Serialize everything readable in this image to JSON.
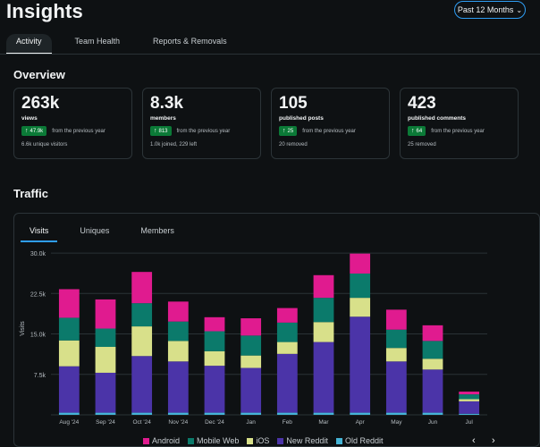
{
  "header": {
    "title": "Insights",
    "range_label": "Past 12 Months"
  },
  "tabs": [
    {
      "label": "Activity",
      "active": true
    },
    {
      "label": "Team Health",
      "active": false
    },
    {
      "label": "Reports & Removals",
      "active": false
    }
  ],
  "overview": {
    "heading": "Overview",
    "cards": [
      {
        "value": "263k",
        "label": "views",
        "change": "47.9k",
        "change_text": "from the previous year",
        "sub": "6.6k unique visitors"
      },
      {
        "value": "8.3k",
        "label": "members",
        "change": "813",
        "change_text": "from the previous year",
        "sub": "1.0k joined, 229 left"
      },
      {
        "value": "105",
        "label": "published posts",
        "change": "25",
        "change_text": "from the previous year",
        "sub": "20 removed"
      },
      {
        "value": "423",
        "label": "published comments",
        "change": "64",
        "change_text": "from the previous year",
        "sub": "25 removed"
      }
    ]
  },
  "traffic": {
    "heading": "Traffic",
    "tabs": [
      {
        "label": "Visits",
        "active": true
      },
      {
        "label": "Uniques",
        "active": false
      },
      {
        "label": "Members",
        "active": false
      }
    ],
    "pager_prev": "‹",
    "pager_next": "›"
  },
  "colors": {
    "android": "#e01b8f",
    "mobile_web": "#0b7a6b",
    "ios": "#d8e08a",
    "new_reddit": "#4b34a8",
    "old_reddit": "#45b4d6",
    "accent": "#2f9ef5"
  },
  "chart_data": {
    "type": "bar",
    "stacked": true,
    "ylabel": "Visits",
    "ylim": [
      0,
      32000
    ],
    "yticks": [
      7500,
      15000,
      22500,
      30000
    ],
    "ytick_labels": [
      "7.5k",
      "15.0k",
      "22.5k",
      "30.0k"
    ],
    "categories": [
      "Aug '24",
      "Sep '24",
      "Oct '24",
      "Nov '24",
      "Dec '24",
      "Jan",
      "Feb",
      "Mar",
      "Apr",
      "May",
      "Jun",
      "Jul"
    ],
    "series": [
      {
        "name": "Old Reddit",
        "color_key": "old_reddit",
        "values": [
          400,
          400,
          400,
          400,
          400,
          400,
          400,
          400,
          400,
          400,
          400,
          200
        ]
      },
      {
        "name": "New Reddit",
        "color_key": "new_reddit",
        "values": [
          8600,
          7400,
          10500,
          9500,
          8700,
          8300,
          10900,
          13100,
          17800,
          9500,
          8000,
          2300
        ]
      },
      {
        "name": "iOS",
        "color_key": "ios",
        "values": [
          4800,
          4800,
          5500,
          3800,
          2700,
          2300,
          2200,
          3700,
          3500,
          2500,
          2000,
          400
        ]
      },
      {
        "name": "Mobile Web",
        "color_key": "mobile_web",
        "values": [
          4200,
          3400,
          4300,
          3600,
          3700,
          3700,
          3600,
          4500,
          4500,
          3400,
          3300,
          900
        ]
      },
      {
        "name": "Android",
        "color_key": "android",
        "values": [
          5300,
          5400,
          5800,
          3700,
          2600,
          3200,
          2700,
          4200,
          3700,
          3700,
          2900,
          500
        ]
      }
    ],
    "legend": [
      "Android",
      "Mobile Web",
      "iOS",
      "New Reddit",
      "Old Reddit"
    ],
    "legend_position": "bottom"
  }
}
